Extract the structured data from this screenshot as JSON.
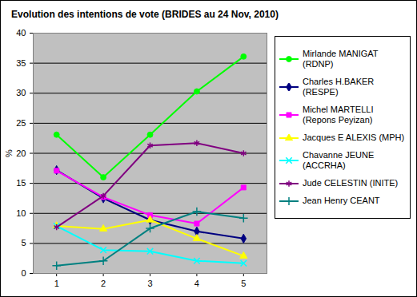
{
  "chart_data": {
    "type": "line",
    "title": "Evolution des intentions de vote (BRIDES au 24 Nov, 2010)",
    "y_label": "%",
    "x": [
      1,
      2,
      3,
      4,
      5
    ],
    "xlim": [
      0.5,
      5.5
    ],
    "xticks": [
      1,
      2,
      3,
      4,
      5
    ],
    "ylim": [
      0,
      40
    ],
    "yticks": [
      0,
      5,
      10,
      15,
      20,
      25,
      30,
      35,
      40
    ],
    "grid": true,
    "legend": "right",
    "series": [
      {
        "name": "Mirlande MANIGAT (RDNP)",
        "color": "#00ff00",
        "marker": "circle",
        "values": [
          23.1,
          16.0,
          23.1,
          30.3,
          36.1
        ]
      },
      {
        "name": "Charles H.BAKER (RESPE)",
        "color": "#000080",
        "marker": "diamond",
        "values": [
          17.2,
          12.5,
          8.9,
          7.0,
          5.8
        ]
      },
      {
        "name": "Michel MARTELLI (Repons Peyizan)",
        "color": "#ff00ff",
        "marker": "square",
        "values": [
          17.1,
          12.7,
          9.7,
          8.3,
          14.3
        ]
      },
      {
        "name": "Jacques E ALEXIS (MPH)",
        "color": "#ffff00",
        "marker": "triangle",
        "values": [
          7.9,
          7.4,
          8.9,
          5.8,
          2.9
        ]
      },
      {
        "name": "Chavanne JEUNE (ACCRHA)",
        "color": "#00ffff",
        "marker": "times",
        "values": [
          7.9,
          3.9,
          3.7,
          2.1,
          1.7
        ]
      },
      {
        "name": "Jude CELESTIN (INITE)",
        "color": "#800080",
        "marker": "asterisk",
        "values": [
          7.7,
          12.9,
          21.3,
          21.7,
          20.0
        ]
      },
      {
        "name": "Jean Henry CEANT",
        "color": "#008080",
        "marker": "plus",
        "values": [
          1.3,
          2.1,
          7.5,
          10.3,
          9.2
        ]
      }
    ]
  }
}
